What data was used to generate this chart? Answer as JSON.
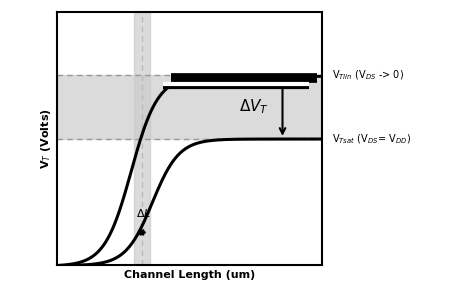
{
  "xlabel": "Channel Length (um)",
  "ylabel": "V$_T$ (Volts)",
  "xlim": [
    0,
    10
  ],
  "ylim": [
    0,
    10
  ],
  "v_tlin": 7.5,
  "v_tsat": 5.0,
  "delta_l_x": 3.2,
  "delta_l_half": 0.3,
  "shaded_color": "#cccccc",
  "dashed_color": "#999999",
  "dashed_vert_color": "#bbbbbb",
  "background_color": "#ffffff",
  "label_vtlin": "V$_{Tlin}$ (V$_{DS}$ -> 0)",
  "label_vtsat": "V$_{Tsat}$ (V$_{DS}$= V$_{DD}$)",
  "label_dvt": "$\\Delta V_T$",
  "label_dl": "$\\Delta L$",
  "curve_lw": 2.2,
  "upper_curve_x0": 2.8,
  "upper_curve_k": 2.0,
  "lower_curve_x0": 3.6,
  "lower_curve_k": 2.0
}
